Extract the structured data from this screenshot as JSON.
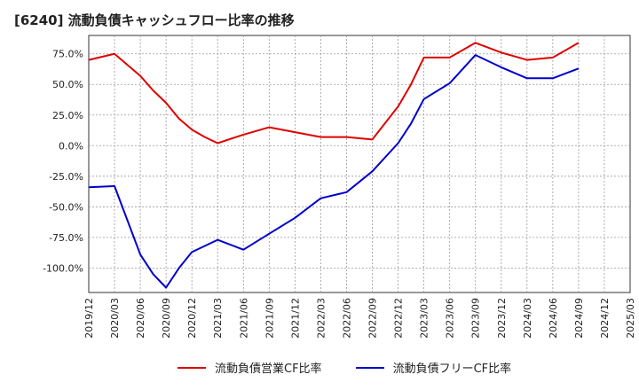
{
  "chart_data": {
    "type": "line",
    "title": "[6240]  流動負債キャッシュフロー比率の推移",
    "xlabel": "",
    "ylabel": "",
    "ylim": [
      -120,
      90
    ],
    "y_ticks": [
      75,
      50,
      25,
      0,
      -25,
      -50,
      -75,
      -100
    ],
    "y_tick_labels": [
      "75.0%",
      "50.0%",
      "25.0%",
      "0.0%",
      "-25.0%",
      "-50.0%",
      "-75.0%",
      "-100.0%"
    ],
    "x_tick_labels": [
      "2019/12",
      "2020/03",
      "2020/06",
      "2020/09",
      "2020/12",
      "2021/03",
      "2021/06",
      "2021/09",
      "2021/12",
      "2022/03",
      "2022/06",
      "2022/09",
      "2022/12",
      "2023/03",
      "2023/06",
      "2023/09",
      "2023/12",
      "2024/03",
      "2024/06",
      "2024/09",
      "2024/12",
      "2025/03"
    ],
    "grid": true,
    "legend_position": "bottom",
    "series": [
      {
        "name": "流動負債営業CF比率",
        "color": "#e00000",
        "points": [
          [
            0,
            70
          ],
          [
            1,
            75
          ],
          [
            2,
            57
          ],
          [
            2.5,
            45
          ],
          [
            3,
            35
          ],
          [
            3.5,
            22
          ],
          [
            4,
            13
          ],
          [
            4.5,
            7
          ],
          [
            5,
            2
          ],
          [
            6,
            9
          ],
          [
            7,
            15
          ],
          [
            8,
            11
          ],
          [
            9,
            7
          ],
          [
            10,
            7
          ],
          [
            11,
            5
          ],
          [
            12,
            32
          ],
          [
            12.5,
            50
          ],
          [
            13,
            72
          ],
          [
            14,
            72
          ],
          [
            15,
            84
          ],
          [
            16,
            76
          ],
          [
            17,
            70
          ],
          [
            18,
            72
          ],
          [
            19,
            84
          ]
        ]
      },
      {
        "name": "流動負債フリーCF比率",
        "color": "#0000cc",
        "points": [
          [
            0,
            -34
          ],
          [
            1,
            -33
          ],
          [
            2,
            -89
          ],
          [
            2.5,
            -105
          ],
          [
            3,
            -116
          ],
          [
            3.5,
            -100
          ],
          [
            4,
            -87
          ],
          [
            4.5,
            -82
          ],
          [
            5,
            -77
          ],
          [
            6,
            -85
          ],
          [
            7,
            -72
          ],
          [
            8,
            -59
          ],
          [
            9,
            -43
          ],
          [
            10,
            -38
          ],
          [
            11,
            -21
          ],
          [
            12,
            2
          ],
          [
            12.5,
            18
          ],
          [
            13,
            38
          ],
          [
            14,
            51
          ],
          [
            15,
            74
          ],
          [
            16,
            64
          ],
          [
            17,
            55
          ],
          [
            18,
            55
          ],
          [
            19,
            63
          ]
        ]
      }
    ]
  }
}
